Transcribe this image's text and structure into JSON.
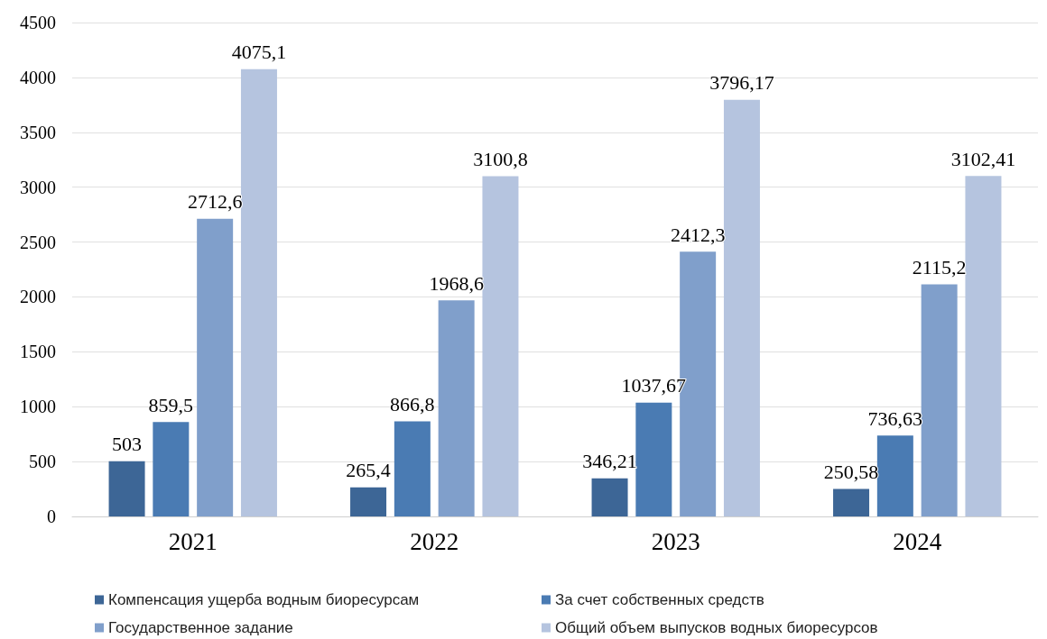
{
  "chart_data": {
    "type": "bar",
    "categories": [
      "2021",
      "2022",
      "2023",
      "2024"
    ],
    "series": [
      {
        "name": "Компенсация ущерба водным биоресурсам",
        "color": "#3d6696",
        "values": [
          503,
          265.4,
          346.21,
          250.58
        ],
        "value_labels": [
          "503",
          "265,4",
          "346,21",
          "250,58"
        ]
      },
      {
        "name": "За счет собственных средств",
        "color": "#4a7bb3",
        "values": [
          859.5,
          866.8,
          1037.67,
          736.63
        ],
        "value_labels": [
          "859,5",
          "866,8",
          "1037,67",
          "736,63"
        ]
      },
      {
        "name": "Государственное задание",
        "color": "#809fcb",
        "values": [
          2712.6,
          1968.6,
          2412.3,
          2115.2
        ],
        "value_labels": [
          "2712,6",
          "1968,6",
          "2412,3",
          "2115,2"
        ]
      },
      {
        "name": "Общий объем выпусков водных биоресурсов",
        "color": "#b5c4df",
        "values": [
          4075.1,
          3100.8,
          3796.17,
          3102.41
        ],
        "value_labels": [
          "4075,1",
          "3100,8",
          "3796,17",
          "3102,41"
        ]
      }
    ],
    "ylim": [
      0,
      4500
    ],
    "yticks": [
      0,
      500,
      1000,
      1500,
      2000,
      2500,
      3000,
      3500,
      4000,
      4500
    ],
    "grid": "y",
    "legend": "bottom"
  }
}
